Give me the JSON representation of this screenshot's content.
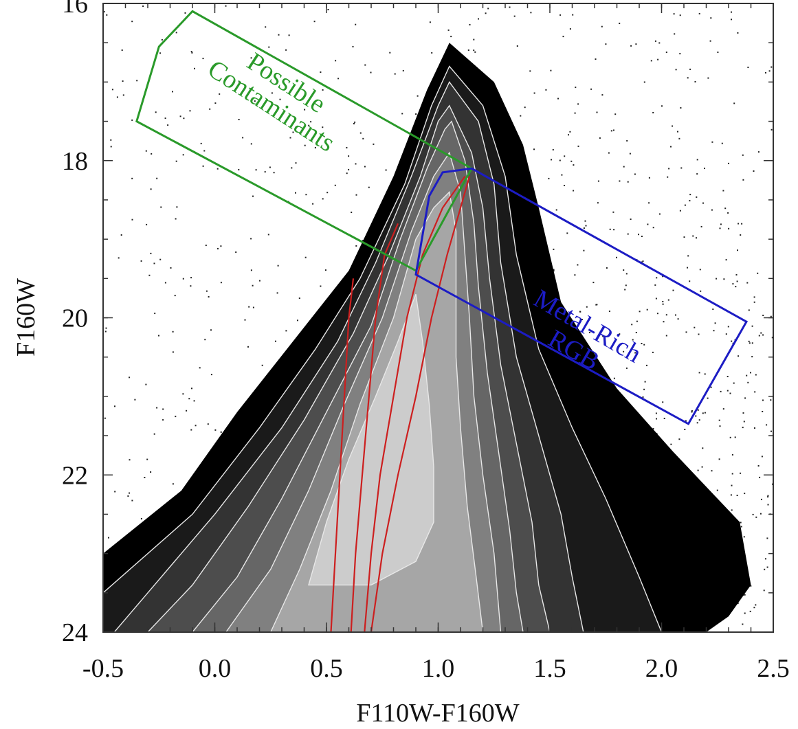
{
  "chart_data": {
    "type": "scatter",
    "title": "",
    "xlabel": "F110W-F160W",
    "ylabel": "F160W",
    "xlim": [
      -0.5,
      2.5
    ],
    "ylim": [
      24,
      16
    ],
    "y_inverted": true,
    "grid": false,
    "x_ticks": [
      -0.5,
      0.0,
      0.5,
      1.0,
      1.5,
      2.0,
      2.5
    ],
    "x_tick_labels": [
      "-0.5",
      "0.0",
      "0.5",
      "1.0",
      "1.5",
      "2.0",
      "2.5"
    ],
    "y_ticks": [
      16,
      18,
      20,
      22,
      24
    ],
    "y_tick_labels": [
      "16",
      "18",
      "20",
      "22",
      "24"
    ],
    "density": {
      "description_levels": 8,
      "colors": [
        "#000000",
        "#1a1a1a",
        "#333333",
        "#4d4d4d",
        "#666666",
        "#808080",
        "#a6a6a6",
        "#cccccc",
        "#eeeeee"
      ],
      "contour_color": "#e8e8e8",
      "levels": [
        {
          "left": [
            [
              -0.5,
              24.0
            ],
            [
              -0.5,
              23.0
            ],
            [
              -0.15,
              22.2
            ],
            [
              0.1,
              21.2
            ],
            [
              0.35,
              20.3
            ],
            [
              0.6,
              19.4
            ],
            [
              0.8,
              18.2
            ],
            [
              0.95,
              17.1
            ],
            [
              1.05,
              16.5
            ]
          ],
          "right": [
            [
              1.05,
              16.5
            ],
            [
              1.25,
              17.0
            ],
            [
              1.38,
              17.8
            ],
            [
              1.45,
              18.6
            ],
            [
              1.55,
              19.8
            ],
            [
              1.8,
              20.9
            ],
            [
              2.05,
              21.7
            ],
            [
              2.35,
              22.6
            ],
            [
              2.4,
              23.4
            ],
            [
              2.3,
              23.8
            ],
            [
              2.2,
              24.0
            ]
          ]
        },
        {
          "left": [
            [
              -0.5,
              24.0
            ],
            [
              -0.5,
              23.5
            ],
            [
              -0.1,
              22.5
            ],
            [
              0.2,
              21.4
            ],
            [
              0.45,
              20.4
            ],
            [
              0.65,
              19.5
            ],
            [
              0.85,
              18.3
            ],
            [
              0.97,
              17.3
            ],
            [
              1.05,
              16.8
            ]
          ],
          "right": [
            [
              1.05,
              16.8
            ],
            [
              1.2,
              17.3
            ],
            [
              1.3,
              18.2
            ],
            [
              1.35,
              19.2
            ],
            [
              1.45,
              20.4
            ],
            [
              1.6,
              21.4
            ],
            [
              1.75,
              22.3
            ],
            [
              1.9,
              23.3
            ],
            [
              2.0,
              24.0
            ]
          ]
        },
        {
          "left": [
            [
              -0.45,
              24.0
            ],
            [
              -0.3,
              23.5
            ],
            [
              0.0,
              22.5
            ],
            [
              0.3,
              21.4
            ],
            [
              0.55,
              20.3
            ],
            [
              0.72,
              19.3
            ],
            [
              0.88,
              18.2
            ],
            [
              1.0,
              17.3
            ],
            [
              1.05,
              17.0
            ]
          ],
          "right": [
            [
              1.05,
              17.0
            ],
            [
              1.18,
              17.5
            ],
            [
              1.25,
              18.3
            ],
            [
              1.28,
              19.3
            ],
            [
              1.35,
              20.5
            ],
            [
              1.45,
              21.5
            ],
            [
              1.55,
              22.5
            ],
            [
              1.6,
              23.3
            ],
            [
              1.65,
              24.0
            ]
          ]
        },
        {
          "left": [
            [
              -0.3,
              24.0
            ],
            [
              -0.1,
              23.4
            ],
            [
              0.15,
              22.4
            ],
            [
              0.4,
              21.3
            ],
            [
              0.62,
              20.2
            ],
            [
              0.78,
              19.2
            ],
            [
              0.92,
              18.2
            ],
            [
              1.0,
              17.5
            ],
            [
              1.05,
              17.3
            ]
          ],
          "right": [
            [
              1.05,
              17.3
            ],
            [
              1.15,
              17.9
            ],
            [
              1.2,
              18.6
            ],
            [
              1.23,
              19.5
            ],
            [
              1.28,
              20.6
            ],
            [
              1.35,
              21.6
            ],
            [
              1.42,
              22.6
            ],
            [
              1.45,
              23.4
            ],
            [
              1.5,
              24.0
            ]
          ]
        },
        {
          "left": [
            [
              -0.1,
              24.0
            ],
            [
              0.1,
              23.3
            ],
            [
              0.3,
              22.3
            ],
            [
              0.5,
              21.2
            ],
            [
              0.7,
              20.1
            ],
            [
              0.83,
              19.0
            ],
            [
              0.95,
              18.1
            ],
            [
              1.03,
              17.6
            ],
            [
              1.06,
              17.5
            ]
          ],
          "right": [
            [
              1.06,
              17.5
            ],
            [
              1.12,
              18.0
            ],
            [
              1.16,
              18.8
            ],
            [
              1.18,
              19.6
            ],
            [
              1.22,
              20.7
            ],
            [
              1.27,
              21.7
            ],
            [
              1.32,
              22.7
            ],
            [
              1.35,
              23.5
            ],
            [
              1.38,
              24.0
            ]
          ]
        },
        {
          "left": [
            [
              0.05,
              24.0
            ],
            [
              0.25,
              23.2
            ],
            [
              0.42,
              22.2
            ],
            [
              0.58,
              21.1
            ],
            [
              0.75,
              20.0
            ],
            [
              0.88,
              18.9
            ],
            [
              0.98,
              18.2
            ],
            [
              1.05,
              17.9
            ]
          ],
          "right": [
            [
              1.05,
              17.9
            ],
            [
              1.1,
              18.4
            ],
            [
              1.12,
              19.2
            ],
            [
              1.14,
              20.0
            ],
            [
              1.16,
              21.0
            ],
            [
              1.2,
              22.0
            ],
            [
              1.25,
              23.0
            ],
            [
              1.28,
              24.0
            ]
          ]
        },
        {
          "left": [
            [
              0.25,
              24.0
            ],
            [
              0.38,
              23.2
            ],
            [
              0.52,
              22.2
            ],
            [
              0.65,
              21.1
            ],
            [
              0.8,
              20.0
            ],
            [
              0.9,
              19.0
            ],
            [
              0.98,
              18.6
            ],
            [
              1.05,
              18.4
            ]
          ],
          "right": [
            [
              1.05,
              18.4
            ],
            [
              1.08,
              18.9
            ],
            [
              1.08,
              19.7
            ],
            [
              1.08,
              20.5
            ],
            [
              1.1,
              21.4
            ],
            [
              1.13,
              22.4
            ],
            [
              1.17,
              23.3
            ],
            [
              1.2,
              24.0
            ]
          ]
        },
        {
          "left": [
            [
              0.42,
              23.4
            ],
            [
              0.5,
              22.6
            ],
            [
              0.6,
              21.8
            ],
            [
              0.72,
              21.0
            ],
            [
              0.82,
              20.3
            ],
            [
              0.9,
              19.7
            ]
          ],
          "right": [
            [
              0.9,
              19.7
            ],
            [
              0.93,
              20.3
            ],
            [
              0.96,
              21.1
            ],
            [
              0.98,
              21.9
            ],
            [
              0.98,
              22.6
            ],
            [
              0.9,
              23.1
            ],
            [
              0.7,
              23.4
            ],
            [
              0.42,
              23.4
            ]
          ]
        }
      ]
    },
    "isochrones": {
      "color": "#cc1f1f",
      "lines": [
        [
          [
            0.52,
            24.0
          ],
          [
            0.54,
            23.0
          ],
          [
            0.56,
            22.0
          ],
          [
            0.58,
            21.0
          ],
          [
            0.6,
            20.0
          ],
          [
            0.62,
            19.5
          ]
        ],
        [
          [
            0.61,
            24.0
          ],
          [
            0.63,
            23.0
          ],
          [
            0.66,
            22.0
          ],
          [
            0.69,
            21.0
          ],
          [
            0.72,
            20.0
          ],
          [
            0.76,
            19.2
          ],
          [
            0.82,
            18.8
          ]
        ],
        [
          [
            0.67,
            24.0
          ],
          [
            0.7,
            23.0
          ],
          [
            0.74,
            22.0
          ],
          [
            0.8,
            21.0
          ],
          [
            0.86,
            20.0
          ],
          [
            0.93,
            19.2
          ],
          [
            1.02,
            18.6
          ],
          [
            1.12,
            18.2
          ]
        ],
        [
          [
            0.7,
            24.0
          ],
          [
            0.75,
            23.0
          ],
          [
            0.82,
            22.0
          ],
          [
            0.9,
            21.0
          ],
          [
            0.97,
            20.0
          ],
          [
            1.04,
            19.2
          ],
          [
            1.1,
            18.6
          ],
          [
            1.14,
            18.2
          ]
        ]
      ]
    },
    "regions": [
      {
        "name": "Possible Contaminants",
        "label_lines": [
          "Possible",
          "Contaminants"
        ],
        "color": "#2a9a2a",
        "polygon": [
          [
            -0.1,
            16.1
          ],
          [
            -0.25,
            16.55
          ],
          [
            -0.35,
            17.5
          ],
          [
            0.9,
            19.4
          ],
          [
            1.15,
            18.1
          ]
        ],
        "label_anchor": [
          0.3,
          17.1
        ]
      },
      {
        "name": "Metal-Rich RGB",
        "label_lines": [
          "Metal-Rich",
          "RGB"
        ],
        "color": "#1c1cc4",
        "polygon": [
          [
            1.15,
            18.1
          ],
          [
            1.02,
            18.15
          ],
          [
            0.96,
            18.45
          ],
          [
            0.9,
            19.45
          ],
          [
            2.12,
            21.35
          ],
          [
            2.38,
            20.05
          ]
        ],
        "label_anchor": [
          1.65,
          20.2
        ]
      }
    ]
  }
}
